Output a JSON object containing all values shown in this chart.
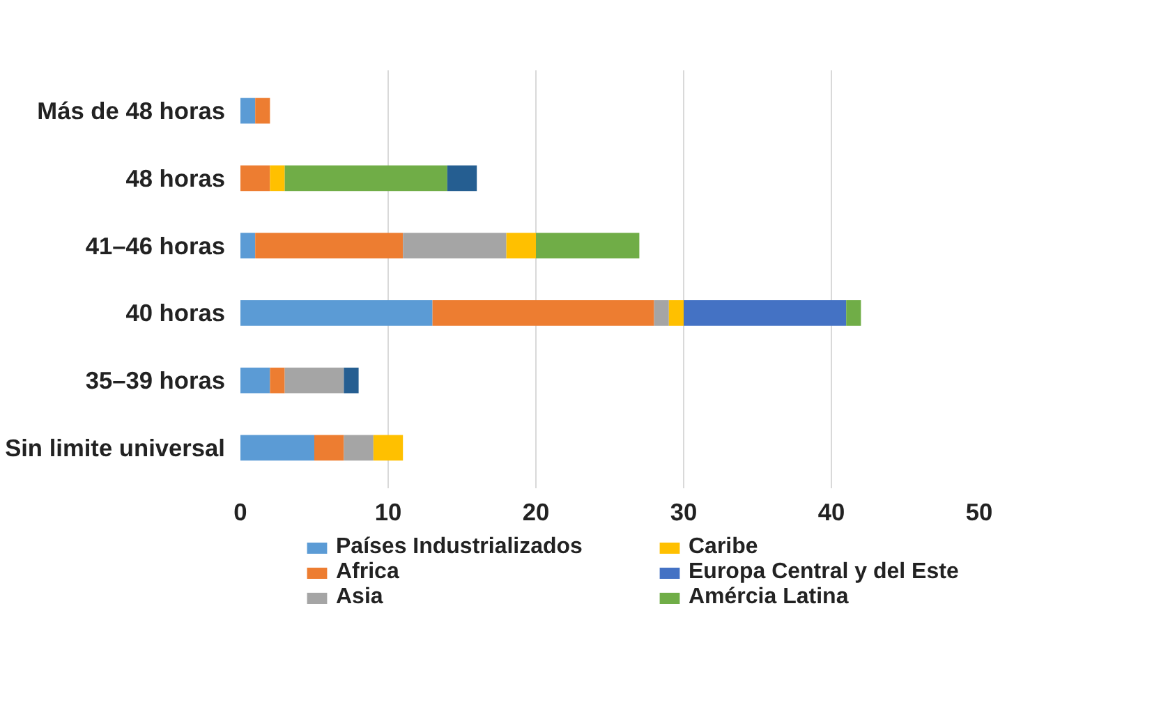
{
  "chart_data": {
    "type": "bar",
    "orientation": "horizontal",
    "stacked": true,
    "categories": [
      "Más de 48 horas",
      "48 horas",
      "41–46 horas",
      "40 horas",
      "35–39 horas",
      "Sin limite universal"
    ],
    "series": [
      {
        "name": "Países Industrializados",
        "color": "#5b9bd5",
        "values": [
          1,
          0,
          1,
          13,
          2,
          5
        ]
      },
      {
        "name": "Africa",
        "color": "#ed7d31",
        "values": [
          1,
          2,
          10,
          15,
          1,
          2
        ]
      },
      {
        "name": "Asia",
        "color": "#a5a5a5",
        "values": [
          0,
          0,
          7,
          1,
          4,
          2
        ]
      },
      {
        "name": "Caribe",
        "color": "#ffc000",
        "values": [
          0,
          1,
          2,
          1,
          0,
          2
        ]
      },
      {
        "name": "Europa Central y del Este",
        "color": "#4472c4",
        "values": [
          0,
          0,
          0,
          11,
          0,
          0
        ]
      },
      {
        "name": "Amércia Latina",
        "color": "#70ad47",
        "values": [
          0,
          11,
          7,
          1,
          0,
          0
        ]
      },
      {
        "color": "#255e91",
        "values": [
          0,
          2,
          0,
          0,
          1,
          0
        ]
      }
    ],
    "xlim": [
      0,
      50
    ],
    "xticks": [
      0,
      10,
      20,
      30,
      40,
      50
    ],
    "grid": "x",
    "legend": "bottom"
  }
}
